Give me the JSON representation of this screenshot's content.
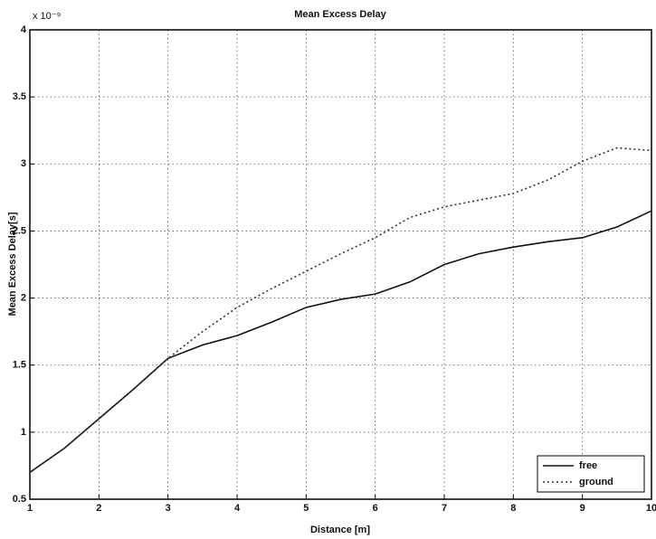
{
  "chart_data": {
    "type": "line",
    "title": "Mean Excess Delay",
    "x_label": "Distance [m]",
    "y_label": "Mean Excess Delay[s]",
    "exponent_label": "x 10⁻⁹",
    "x": [
      1,
      1.5,
      2,
      2.5,
      3,
      3.5,
      4,
      4.5,
      5,
      5.5,
      6,
      6.5,
      7,
      7.5,
      8,
      8.5,
      9,
      9.5,
      10
    ],
    "series": [
      {
        "name": "free",
        "color": "#111111",
        "line_style": "solid",
        "values": [
          0.7,
          0.88,
          1.1,
          1.32,
          1.55,
          1.65,
          1.72,
          1.82,
          1.93,
          1.99,
          2.03,
          2.12,
          2.25,
          2.33,
          2.38,
          2.42,
          2.45,
          2.53,
          2.65
        ]
      },
      {
        "name": "ground",
        "color": "#333333",
        "line_style": "dotted",
        "values": [
          0.7,
          0.88,
          1.1,
          1.32,
          1.55,
          1.75,
          1.93,
          2.07,
          2.2,
          2.33,
          2.45,
          2.6,
          2.68,
          2.73,
          2.78,
          2.88,
          3.02,
          3.12,
          3.1
        ]
      }
    ],
    "xlim": [
      1,
      10
    ],
    "xticks": [
      1,
      2,
      3,
      4,
      5,
      6,
      7,
      8,
      9,
      10
    ],
    "ylim": [
      0.5,
      4
    ],
    "yticks": [
      0.5,
      1,
      1.5,
      2,
      2.5,
      3,
      3.5,
      4
    ],
    "grid": true,
    "legend_position": "lower right"
  }
}
